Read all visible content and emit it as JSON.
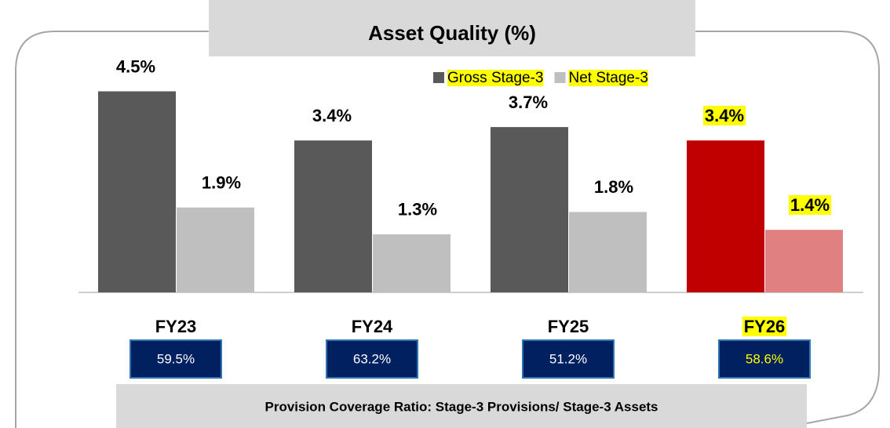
{
  "chart_data": {
    "type": "bar",
    "title": "Asset Quality (%)",
    "categories": [
      "FY23",
      "FY24",
      "FY25",
      "FY26"
    ],
    "series": [
      {
        "name": "Gross Stage-3",
        "color": "#595959",
        "colors": [
          "#595959",
          "#595959",
          "#595959",
          "#c00000"
        ],
        "values": [
          4.5,
          3.4,
          3.7,
          3.4
        ],
        "value_labels": [
          "4.5%",
          "3.4%",
          "3.7%",
          "3.4%"
        ]
      },
      {
        "name": "Net Stage-3",
        "color": "#bfbfbf",
        "colors": [
          "#bfbfbf",
          "#bfbfbf",
          "#bfbfbf",
          "#e08080"
        ],
        "values": [
          1.9,
          1.3,
          1.8,
          1.4
        ],
        "value_labels": [
          "1.9%",
          "1.3%",
          "1.8%",
          "1.4%"
        ]
      }
    ],
    "highlighted": [
      false,
      false,
      false,
      true
    ],
    "highlight_color": "#ffff00",
    "pcr_values": [
      59.5,
      63.2,
      51.2,
      58.6
    ],
    "pcr_labels": [
      "59.5%",
      "63.2%",
      "51.2%",
      "58.6%"
    ],
    "footer": "Provision Coverage Ratio:  Stage-3 Provisions/ Stage-3 Assets"
  }
}
